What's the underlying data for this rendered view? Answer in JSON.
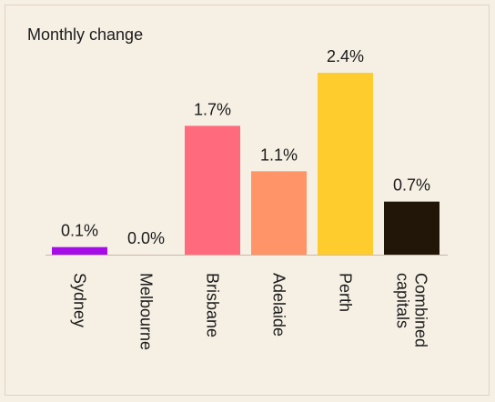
{
  "chart_data": {
    "type": "bar",
    "title": "Monthly change",
    "categories": [
      "Sydney",
      "Melbourne",
      "Brisbane",
      "Adelaide",
      "Perth",
      "Combined capitals"
    ],
    "category_lines": [
      [
        "Sydney"
      ],
      [
        "Melbourne"
      ],
      [
        "Brisbane"
      ],
      [
        "Adelaide"
      ],
      [
        "Perth"
      ],
      [
        "Combined",
        "capitals"
      ]
    ],
    "values": [
      0.1,
      0.0,
      1.7,
      1.1,
      2.4,
      0.7
    ],
    "value_labels": [
      "0.1%",
      "0.0%",
      "1.7%",
      "1.1%",
      "2.4%",
      "0.7%"
    ],
    "colors": [
      "#a50de8",
      "#8f8f8f",
      "#ff6b7c",
      "#ff9468",
      "#ffcc2e",
      "#211608"
    ],
    "ylim": [
      0,
      2.4
    ],
    "grid": false,
    "legend": "none"
  }
}
